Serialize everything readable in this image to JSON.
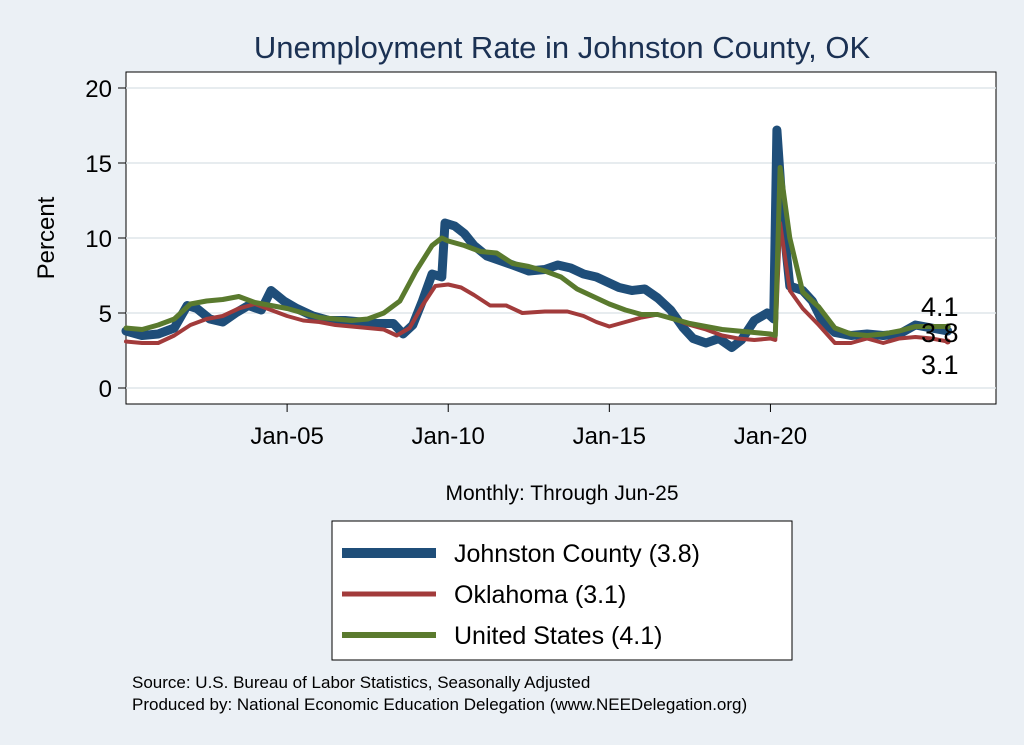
{
  "chart_data": {
    "type": "line",
    "title": "Unemployment Rate in Johnston  County, OK",
    "ylabel": "Percent",
    "xlabel": "Monthly: Through Jun-25",
    "ylim": [
      0,
      20
    ],
    "xlim": [
      2000.0,
      2027.0
    ],
    "y_ticks": [
      0,
      5,
      10,
      15,
      20
    ],
    "x_ticks": [
      {
        "label": "Jan-05",
        "value": 2005.0
      },
      {
        "label": "Jan-10",
        "value": 2010.0
      },
      {
        "label": "Jan-15",
        "value": 2015.0
      },
      {
        "label": "Jan-20",
        "value": 2020.0
      }
    ],
    "grid": true,
    "legend_position": "bottom-center",
    "series": [
      {
        "name": "Johnston  County",
        "legend_label": "Johnston  County (3.8)",
        "color": "#1f4e79",
        "last_label": "3.8",
        "points": [
          [
            2000.0,
            3.8
          ],
          [
            2000.5,
            3.5
          ],
          [
            2001.0,
            3.6
          ],
          [
            2001.5,
            4.0
          ],
          [
            2001.9,
            5.5
          ],
          [
            2002.2,
            5.3
          ],
          [
            2002.6,
            4.6
          ],
          [
            2003.0,
            4.4
          ],
          [
            2003.4,
            5.0
          ],
          [
            2003.8,
            5.5
          ],
          [
            2004.2,
            5.2
          ],
          [
            2004.5,
            6.5
          ],
          [
            2004.9,
            5.8
          ],
          [
            2005.3,
            5.3
          ],
          [
            2005.8,
            4.8
          ],
          [
            2006.3,
            4.5
          ],
          [
            2006.8,
            4.5
          ],
          [
            2007.3,
            4.4
          ],
          [
            2007.8,
            4.3
          ],
          [
            2008.3,
            4.3
          ],
          [
            2008.6,
            3.6
          ],
          [
            2008.9,
            4.2
          ],
          [
            2009.2,
            5.8
          ],
          [
            2009.5,
            7.6
          ],
          [
            2009.8,
            7.4
          ],
          [
            2009.9,
            11.0
          ],
          [
            2010.2,
            10.8
          ],
          [
            2010.5,
            10.3
          ],
          [
            2010.8,
            9.5
          ],
          [
            2011.2,
            8.8
          ],
          [
            2011.6,
            8.5
          ],
          [
            2012.0,
            8.2
          ],
          [
            2012.5,
            7.8
          ],
          [
            2013.0,
            7.9
          ],
          [
            2013.4,
            8.2
          ],
          [
            2013.8,
            8.0
          ],
          [
            2014.2,
            7.6
          ],
          [
            2014.6,
            7.4
          ],
          [
            2015.0,
            7.0
          ],
          [
            2015.3,
            6.7
          ],
          [
            2015.7,
            6.5
          ],
          [
            2016.1,
            6.6
          ],
          [
            2016.5,
            6.0
          ],
          [
            2016.9,
            5.2
          ],
          [
            2017.3,
            4.0
          ],
          [
            2017.6,
            3.3
          ],
          [
            2018.0,
            3.0
          ],
          [
            2018.4,
            3.3
          ],
          [
            2018.8,
            2.7
          ],
          [
            2019.1,
            3.2
          ],
          [
            2019.5,
            4.5
          ],
          [
            2019.9,
            5.0
          ],
          [
            2020.1,
            4.6
          ],
          [
            2020.2,
            17.2
          ],
          [
            2020.4,
            11.0
          ],
          [
            2020.6,
            6.8
          ],
          [
            2021.0,
            6.5
          ],
          [
            2021.3,
            5.8
          ],
          [
            2021.6,
            4.5
          ],
          [
            2022.0,
            3.7
          ],
          [
            2022.5,
            3.5
          ],
          [
            2023.0,
            3.6
          ],
          [
            2023.5,
            3.5
          ],
          [
            2024.0,
            3.6
          ],
          [
            2024.5,
            4.2
          ],
          [
            2025.0,
            4.0
          ],
          [
            2025.5,
            3.8
          ]
        ]
      },
      {
        "name": "Oklahoma",
        "legend_label": "Oklahoma (3.1)",
        "color": "#a23b3b",
        "last_label": "3.1",
        "points": [
          [
            2000.0,
            3.1
          ],
          [
            2000.5,
            3.0
          ],
          [
            2001.0,
            3.0
          ],
          [
            2001.5,
            3.5
          ],
          [
            2002.0,
            4.2
          ],
          [
            2002.5,
            4.6
          ],
          [
            2003.0,
            4.8
          ],
          [
            2003.5,
            5.3
          ],
          [
            2004.0,
            5.6
          ],
          [
            2004.5,
            5.2
          ],
          [
            2005.0,
            4.8
          ],
          [
            2005.5,
            4.5
          ],
          [
            2006.0,
            4.4
          ],
          [
            2006.5,
            4.2
          ],
          [
            2007.0,
            4.1
          ],
          [
            2007.5,
            4.0
          ],
          [
            2008.0,
            3.9
          ],
          [
            2008.4,
            3.5
          ],
          [
            2008.8,
            4.0
          ],
          [
            2009.2,
            5.5
          ],
          [
            2009.6,
            6.8
          ],
          [
            2010.0,
            6.9
          ],
          [
            2010.4,
            6.7
          ],
          [
            2010.8,
            6.2
          ],
          [
            2011.3,
            5.5
          ],
          [
            2011.8,
            5.5
          ],
          [
            2012.3,
            5.0
          ],
          [
            2013.0,
            5.1
          ],
          [
            2013.7,
            5.1
          ],
          [
            2014.2,
            4.8
          ],
          [
            2014.6,
            4.4
          ],
          [
            2015.0,
            4.1
          ],
          [
            2015.5,
            4.4
          ],
          [
            2016.0,
            4.7
          ],
          [
            2016.5,
            4.9
          ],
          [
            2017.0,
            4.6
          ],
          [
            2017.5,
            4.2
          ],
          [
            2018.0,
            3.9
          ],
          [
            2018.5,
            3.5
          ],
          [
            2019.0,
            3.3
          ],
          [
            2019.5,
            3.2
          ],
          [
            2020.0,
            3.3
          ],
          [
            2020.15,
            3.2
          ],
          [
            2020.3,
            11.0
          ],
          [
            2020.6,
            6.5
          ],
          [
            2021.0,
            5.3
          ],
          [
            2021.5,
            4.2
          ],
          [
            2022.0,
            3.0
          ],
          [
            2022.5,
            3.0
          ],
          [
            2023.0,
            3.3
          ],
          [
            2023.5,
            3.0
          ],
          [
            2024.0,
            3.3
          ],
          [
            2024.5,
            3.4
          ],
          [
            2025.0,
            3.3
          ],
          [
            2025.5,
            3.1
          ]
        ]
      },
      {
        "name": "United States",
        "legend_label": "United States (4.1)",
        "color": "#5a7a2e",
        "last_label": "4.1",
        "points": [
          [
            2000.0,
            4.0
          ],
          [
            2000.5,
            3.9
          ],
          [
            2001.0,
            4.2
          ],
          [
            2001.5,
            4.6
          ],
          [
            2002.0,
            5.6
          ],
          [
            2002.5,
            5.8
          ],
          [
            2003.0,
            5.9
          ],
          [
            2003.5,
            6.1
          ],
          [
            2004.0,
            5.7
          ],
          [
            2004.5,
            5.5
          ],
          [
            2005.0,
            5.3
          ],
          [
            2005.5,
            5.0
          ],
          [
            2006.0,
            4.7
          ],
          [
            2006.5,
            4.6
          ],
          [
            2007.0,
            4.5
          ],
          [
            2007.5,
            4.6
          ],
          [
            2008.0,
            5.0
          ],
          [
            2008.5,
            5.8
          ],
          [
            2009.0,
            7.8
          ],
          [
            2009.5,
            9.5
          ],
          [
            2009.8,
            10.0
          ],
          [
            2010.0,
            9.8
          ],
          [
            2010.5,
            9.5
          ],
          [
            2011.0,
            9.1
          ],
          [
            2011.5,
            9.0
          ],
          [
            2012.0,
            8.3
          ],
          [
            2012.5,
            8.1
          ],
          [
            2013.0,
            7.8
          ],
          [
            2013.5,
            7.4
          ],
          [
            2014.0,
            6.6
          ],
          [
            2014.5,
            6.1
          ],
          [
            2015.0,
            5.6
          ],
          [
            2015.5,
            5.2
          ],
          [
            2016.0,
            4.9
          ],
          [
            2016.5,
            4.9
          ],
          [
            2017.0,
            4.6
          ],
          [
            2017.5,
            4.3
          ],
          [
            2018.0,
            4.1
          ],
          [
            2018.5,
            3.9
          ],
          [
            2019.0,
            3.8
          ],
          [
            2019.5,
            3.7
          ],
          [
            2020.0,
            3.6
          ],
          [
            2020.15,
            3.5
          ],
          [
            2020.3,
            14.7
          ],
          [
            2020.6,
            10.0
          ],
          [
            2021.0,
            6.4
          ],
          [
            2021.5,
            5.4
          ],
          [
            2022.0,
            4.0
          ],
          [
            2022.5,
            3.6
          ],
          [
            2023.0,
            3.5
          ],
          [
            2023.5,
            3.6
          ],
          [
            2024.0,
            3.8
          ],
          [
            2024.5,
            4.1
          ],
          [
            2025.0,
            4.1
          ],
          [
            2025.5,
            4.1
          ]
        ]
      }
    ]
  },
  "footer": {
    "source": "Source: U.S. Bureau of Labor Statistics, Seasonally Adjusted",
    "produced_by": "Produced by: National Economic Education Delegation (www.NEEDelegation.org)"
  }
}
